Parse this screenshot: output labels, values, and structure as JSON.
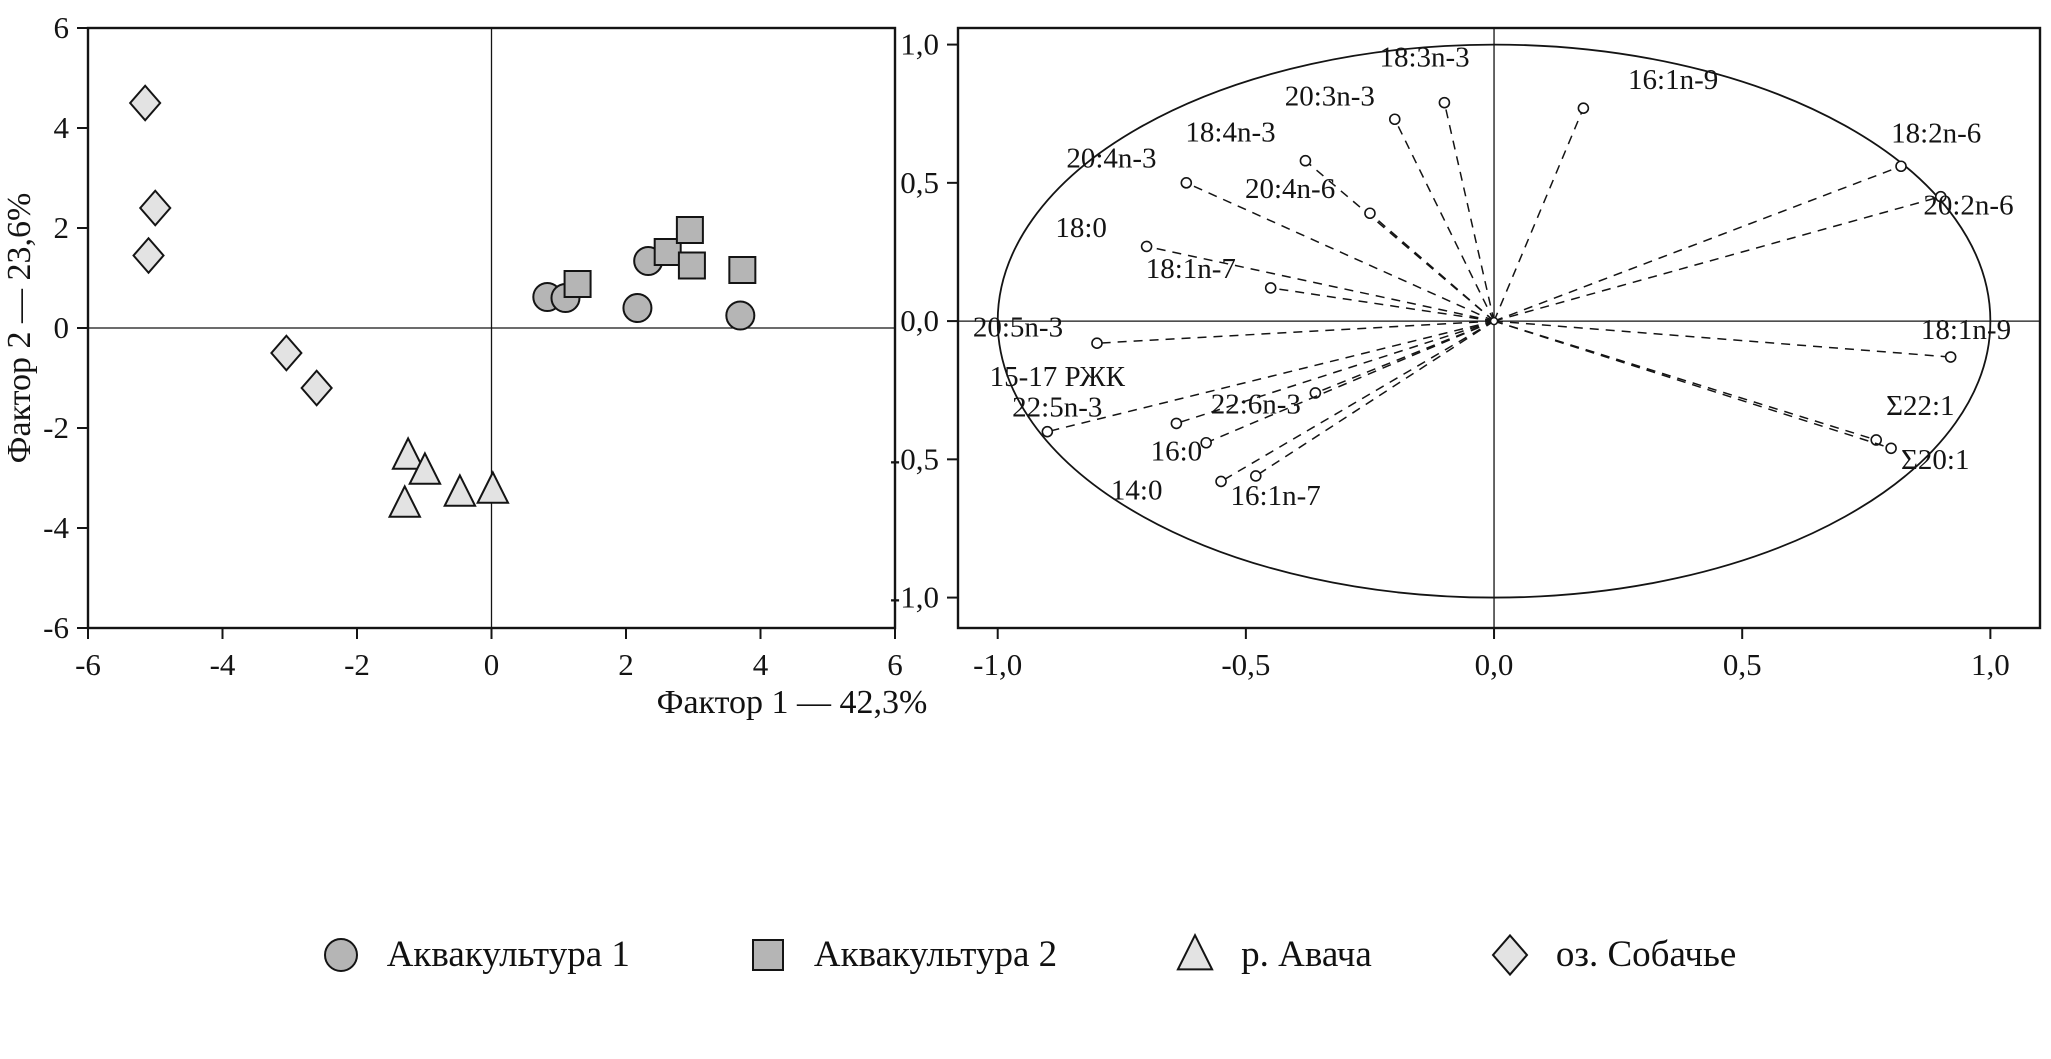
{
  "figure": {
    "background": "#ffffff",
    "stroke_color": "#141414"
  },
  "legend": {
    "position": "bottom",
    "items": [
      {
        "label": "Аквакультура 1",
        "marker": "circle",
        "fill": "#b5b5b5"
      },
      {
        "label": "Аквакультура 2",
        "marker": "square",
        "fill": "#b5b5b5"
      },
      {
        "label": "р. Авача",
        "marker": "triangle",
        "fill": "#e3e3e3"
      },
      {
        "label": "оз. Собачье",
        "marker": "diamond",
        "fill": "#e3e3e3"
      }
    ]
  },
  "chart_data": [
    {
      "type": "scatter",
      "name": "pca-scores-plot",
      "title": "",
      "xlabel": "Фактор 1 — 42,3%",
      "ylabel": "Фактор 2 — 23,6%",
      "xlim": [
        -6,
        6
      ],
      "ylim": [
        -6,
        6
      ],
      "xticks": [
        -6,
        -4,
        -2,
        0,
        2,
        4,
        6
      ],
      "xtick_labels": [
        "-6",
        "-4",
        "-2",
        "0",
        "2",
        "4",
        "6"
      ],
      "yticks": [
        -6,
        -4,
        -2,
        0,
        2,
        4,
        6
      ],
      "ytick_labels": [
        "-6",
        "-4",
        "-2",
        "0",
        "2",
        "4",
        "6"
      ],
      "grid": false,
      "zero_lines": true,
      "legend_position": "bottom",
      "series": [
        {
          "name": "Аквакультура 1",
          "marker": "circle",
          "fill": "#b5b5b5",
          "points": [
            [
              0.83,
              0.62
            ],
            [
              1.1,
              0.6
            ],
            [
              2.33,
              1.34
            ],
            [
              2.17,
              0.4
            ],
            [
              3.7,
              0.25
            ]
          ]
        },
        {
          "name": "Аквакультура 2",
          "marker": "square",
          "fill": "#b5b5b5",
          "points": [
            [
              1.28,
              0.88
            ],
            [
              2.62,
              1.52
            ],
            [
              2.95,
              1.96
            ],
            [
              2.98,
              1.25
            ],
            [
              3.73,
              1.16
            ]
          ]
        },
        {
          "name": "р. Авача",
          "marker": "triangle",
          "fill": "#e3e3e3",
          "points": [
            [
              -1.24,
              -2.56
            ],
            [
              -0.99,
              -2.86
            ],
            [
              -1.29,
              -3.52
            ],
            [
              -0.47,
              -3.3
            ],
            [
              0.02,
              -3.24
            ]
          ]
        },
        {
          "name": "оз. Собачье",
          "marker": "diamond",
          "fill": "#e3e3e3",
          "points": [
            [
              -5.15,
              4.5
            ],
            [
              -5.0,
              2.4
            ],
            [
              -5.1,
              1.45
            ],
            [
              -3.05,
              -0.5
            ],
            [
              -2.6,
              -1.2
            ]
          ]
        }
      ]
    },
    {
      "type": "scatter",
      "subtype": "pca-loadings-correlation-circle",
      "name": "pca-loadings-plot",
      "xlim": [
        -1.08,
        1.1
      ],
      "ylim": [
        -1.11,
        1.06
      ],
      "xticks": [
        -1,
        -0.5,
        0,
        0.5,
        1
      ],
      "xtick_labels": [
        "-1,0",
        "-0,5",
        "0,0",
        "0,5",
        "1,0"
      ],
      "yticks": [
        -1,
        -0.5,
        0,
        0.5,
        1
      ],
      "ytick_labels": [
        "-1,0",
        "-0,5",
        "0,0",
        "0,5",
        "1,0"
      ],
      "unit_circle": true,
      "zero_lines": true,
      "loadings": [
        {
          "label": "18:3n-3",
          "x": -0.1,
          "y": 0.79,
          "lx": -0.14,
          "ly": 0.92,
          "anchor": "middle"
        },
        {
          "label": "20:3n-3",
          "x": -0.2,
          "y": 0.73,
          "lx": -0.24,
          "ly": 0.78,
          "anchor": "end"
        },
        {
          "label": "16:1n-9",
          "x": 0.18,
          "y": 0.77,
          "lx": 0.27,
          "ly": 0.84,
          "anchor": "start"
        },
        {
          "label": "18:4n-3",
          "x": -0.38,
          "y": 0.58,
          "lx": -0.44,
          "ly": 0.65,
          "anchor": "end"
        },
        {
          "label": "20:4n-3",
          "x": -0.62,
          "y": 0.5,
          "lx": -0.68,
          "ly": 0.555,
          "anchor": "end"
        },
        {
          "label": "20:4n-6",
          "x": -0.25,
          "y": 0.39,
          "lx": -0.32,
          "ly": 0.445,
          "anchor": "end"
        },
        {
          "label": "18:0",
          "x": -0.7,
          "y": 0.27,
          "lx": -0.78,
          "ly": 0.305,
          "anchor": "end"
        },
        {
          "label": "18:1n-7",
          "x": -0.45,
          "y": 0.12,
          "lx": -0.52,
          "ly": 0.155,
          "anchor": "end"
        },
        {
          "label": "20:5n-3",
          "x": -0.8,
          "y": -0.08,
          "lx": -1.05,
          "ly": -0.055,
          "anchor": "start"
        },
        {
          "label": "18:2n-6",
          "x": 0.82,
          "y": 0.56,
          "lx": 0.8,
          "ly": 0.645,
          "anchor": "start"
        },
        {
          "label": "20:2n-6",
          "x": 0.9,
          "y": 0.45,
          "lx": 0.865,
          "ly": 0.385,
          "anchor": "start"
        },
        {
          "label": "18:1n-9",
          "x": 0.92,
          "y": -0.13,
          "lx": 0.86,
          "ly": -0.065,
          "anchor": "start"
        },
        {
          "label": "Σ22:1",
          "x": 0.77,
          "y": -0.43,
          "lx": 0.79,
          "ly": -0.34,
          "anchor": "start"
        },
        {
          "label": "Σ20:1",
          "x": 0.8,
          "y": -0.46,
          "lx": 0.82,
          "ly": -0.535,
          "anchor": "start"
        },
        {
          "label": "15-17 РЖК",
          "x": -0.9,
          "y": -0.4,
          "lx": -0.88,
          "ly": -0.235,
          "anchor": "middle"
        },
        {
          "label": "22:5n-3",
          "x": -0.64,
          "y": -0.37,
          "lx": -0.88,
          "ly": -0.345,
          "anchor": "middle"
        },
        {
          "label": "22:6n-3",
          "x": -0.36,
          "y": -0.26,
          "lx": -0.48,
          "ly": -0.335,
          "anchor": "middle"
        },
        {
          "label": "16:0",
          "x": -0.58,
          "y": -0.44,
          "lx": -0.64,
          "ly": -0.505,
          "anchor": "middle"
        },
        {
          "label": "14:0",
          "x": -0.55,
          "y": -0.58,
          "lx": -0.72,
          "ly": -0.645,
          "anchor": "middle"
        },
        {
          "label": "16:1n-7",
          "x": -0.48,
          "y": -0.56,
          "lx": -0.44,
          "ly": -0.665,
          "anchor": "middle"
        }
      ]
    }
  ]
}
